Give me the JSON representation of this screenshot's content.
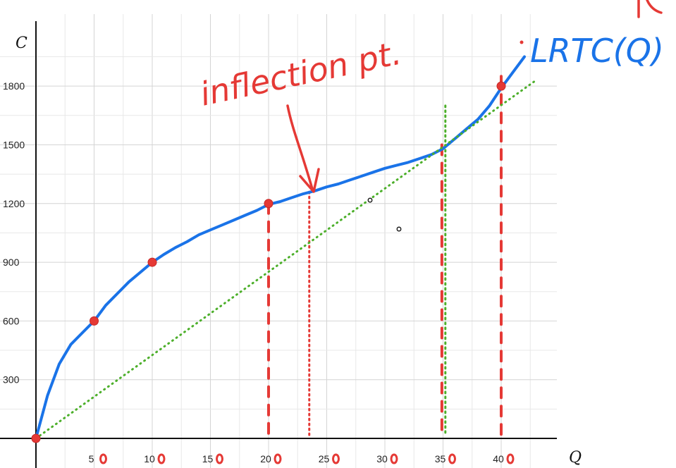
{
  "chart_data": {
    "type": "line",
    "xlabel": "Q",
    "ylabel": "C",
    "xlim": [
      0,
      42.5
    ],
    "ylim": [
      0,
      1950
    ],
    "grid": true,
    "x_ticks": [
      5,
      10,
      15,
      20,
      25,
      30,
      35,
      40
    ],
    "y_ticks": [
      300,
      600,
      900,
      1200,
      1500,
      1800
    ],
    "series": [
      {
        "name": "LRTC(Q)",
        "color": "#1a73e8",
        "x": [
          0,
          1,
          2,
          3,
          4,
          5,
          6,
          7,
          8,
          9,
          10,
          11,
          12,
          13,
          14,
          15,
          16,
          17,
          18,
          19,
          20,
          21,
          22,
          23,
          24,
          25,
          26,
          27,
          28,
          29,
          30,
          31,
          32,
          33,
          34,
          35,
          36,
          37,
          38,
          39,
          40,
          41,
          42
        ],
        "values": [
          0,
          220,
          380,
          480,
          540,
          600,
          680,
          740,
          800,
          850,
          900,
          940,
          975,
          1005,
          1040,
          1065,
          1090,
          1115,
          1140,
          1165,
          1195,
          1210,
          1230,
          1250,
          1265,
          1285,
          1300,
          1320,
          1340,
          1360,
          1380,
          1395,
          1410,
          1430,
          1450,
          1480,
          1530,
          1580,
          1630,
          1700,
          1790,
          1870,
          1950
        ]
      },
      {
        "name": "",
        "style": "dotted",
        "color": "#4caf2a",
        "x": [
          0,
          43
        ],
        "values": [
          0,
          1830
        ]
      }
    ],
    "points": [
      {
        "x": 0,
        "y": 0
      },
      {
        "x": 5,
        "y": 600
      },
      {
        "x": 10,
        "y": 900
      },
      {
        "x": 20,
        "y": 1200
      },
      {
        "x": 40,
        "y": 1800
      }
    ],
    "annotations": [
      {
        "text": "inflection pt.",
        "color": "#e53935"
      },
      {
        "text": "LRTC(Q)",
        "color": "#1a73e8"
      }
    ],
    "vertical_lines": [
      {
        "x": 20,
        "style": "dashed",
        "color": "#e53935",
        "from": 0,
        "to": 1200
      },
      {
        "x": 23.5,
        "style": "dotted",
        "color": "#e53935",
        "from": 0,
        "to": 1260
      },
      {
        "x": 34.9,
        "style": "dashed",
        "color": "#e53935",
        "from": 0,
        "to": 1500
      },
      {
        "x": 35.2,
        "style": "dotted",
        "color": "#4caf2a",
        "from": 0,
        "to": 1700
      },
      {
        "x": 40,
        "style": "dashed",
        "color": "#e53935",
        "from": 0,
        "to": 1850
      }
    ]
  }
}
